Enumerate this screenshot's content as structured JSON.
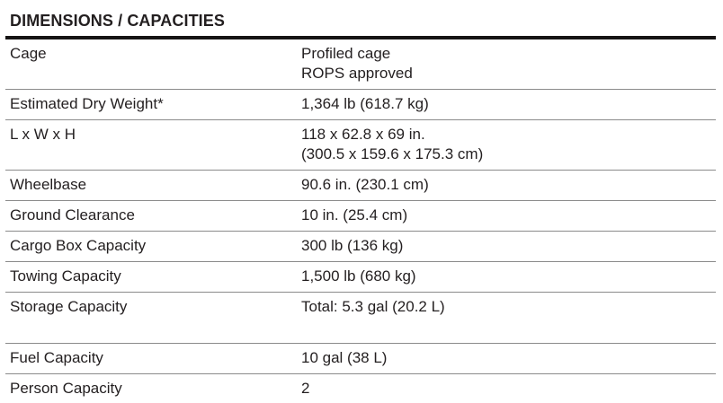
{
  "section": {
    "title": "DIMENSIONS / CAPACITIES"
  },
  "table": {
    "rows": [
      {
        "label": "Cage",
        "values": [
          "Profiled cage",
          "ROPS approved"
        ]
      },
      {
        "label": "Estimated Dry Weight*",
        "values": [
          "1,364 lb (618.7 kg)"
        ]
      },
      {
        "label": "L x W x H",
        "values": [
          "118 x 62.8 x 69 in.",
          "(300.5 x 159.6 x 175.3 cm)"
        ]
      },
      {
        "label": "Wheelbase",
        "values": [
          "90.6 in. (230.1 cm)"
        ]
      },
      {
        "label": "Ground Clearance",
        "values": [
          "10 in. (25.4 cm)"
        ]
      },
      {
        "label": "Cargo Box Capacity",
        "values": [
          "300 lb (136 kg)"
        ]
      },
      {
        "label": "Towing Capacity",
        "values": [
          "1,500 lb (680 kg)"
        ]
      },
      {
        "label": "Storage Capacity",
        "values": [
          "Total: 5.3 gal (20.2 L)"
        ]
      },
      {
        "label": "Fuel Capacity",
        "values": [
          "10 gal (38 L)"
        ]
      },
      {
        "label": "Person Capacity",
        "values": [
          "2"
        ]
      }
    ]
  },
  "colors": {
    "text": "#231f20",
    "heavy_rule": "#161414",
    "divider": "#8a8a8a",
    "background": "#ffffff"
  }
}
